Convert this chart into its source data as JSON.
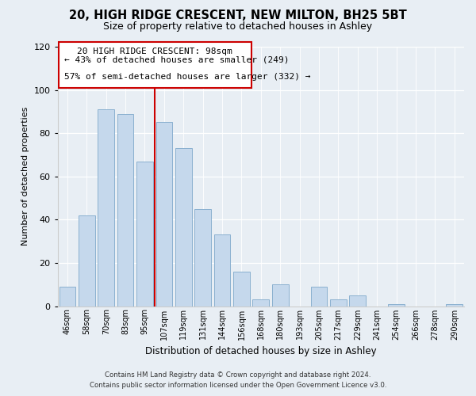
{
  "title": "20, HIGH RIDGE CRESCENT, NEW MILTON, BH25 5BT",
  "subtitle": "Size of property relative to detached houses in Ashley",
  "xlabel": "Distribution of detached houses by size in Ashley",
  "ylabel": "Number of detached properties",
  "categories": [
    "46sqm",
    "58sqm",
    "70sqm",
    "83sqm",
    "95sqm",
    "107sqm",
    "119sqm",
    "131sqm",
    "144sqm",
    "156sqm",
    "168sqm",
    "180sqm",
    "193sqm",
    "205sqm",
    "217sqm",
    "229sqm",
    "241sqm",
    "254sqm",
    "266sqm",
    "278sqm",
    "290sqm"
  ],
  "values": [
    9,
    42,
    91,
    89,
    67,
    85,
    73,
    45,
    33,
    16,
    3,
    10,
    0,
    9,
    3,
    5,
    0,
    1,
    0,
    0,
    1
  ],
  "bar_color": "#c5d8ec",
  "bar_edge_color": "#8ab0d0",
  "marker_index": 4,
  "marker_color": "#cc0000",
  "annotation_title": "20 HIGH RIDGE CRESCENT: 98sqm",
  "annotation_line1": "← 43% of detached houses are smaller (249)",
  "annotation_line2": "57% of semi-detached houses are larger (332) →",
  "ylim": [
    0,
    120
  ],
  "yticks": [
    0,
    20,
    40,
    60,
    80,
    100,
    120
  ],
  "footer_line1": "Contains HM Land Registry data © Crown copyright and database right 2024.",
  "footer_line2": "Contains public sector information licensed under the Open Government Licence v3.0.",
  "background_color": "#e8eef4"
}
